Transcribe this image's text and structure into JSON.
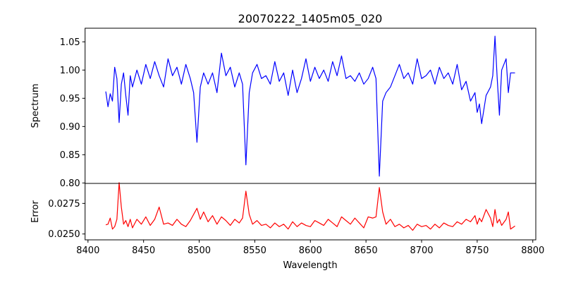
{
  "chart_data": {
    "type": "line",
    "title": "20070222_1405m05_020",
    "xlabel": "Wavelength",
    "xlim": [
      8397.4,
      8802.7
    ],
    "xticks": [
      8400,
      8450,
      8500,
      8550,
      8600,
      8650,
      8700,
      8750,
      8800
    ],
    "xtick_labels": [
      "8400",
      "8450",
      "8500",
      "8550",
      "8600",
      "8650",
      "8700",
      "8750",
      "8800"
    ],
    "panels": [
      {
        "name": "Spectrum",
        "ylabel": "Spectrum",
        "ylim": [
          0.7992,
          1.0741
        ],
        "color": "#0000ff",
        "yticks": [
          0.8,
          0.85,
          0.9,
          0.95,
          1.0,
          1.05
        ],
        "ytick_labels": [
          "0.80",
          "0.85",
          "0.90",
          "0.95",
          "1.00",
          "1.05"
        ]
      },
      {
        "name": "Error",
        "ylabel": "Error",
        "ylim": [
          0.02452,
          0.029134
        ],
        "color": "#ff0000",
        "yticks": [
          0.025,
          0.0275
        ],
        "ytick_labels": [
          "0.0250",
          "0.0275"
        ]
      }
    ],
    "columns": [
      "wavelength",
      "spectrum",
      "error"
    ],
    "data": [
      [
        8416,
        0.962,
        0.02575
      ],
      [
        8418,
        0.935,
        0.0258
      ],
      [
        8420,
        0.958,
        0.0263
      ],
      [
        8422,
        0.945,
        0.0254
      ],
      [
        8424,
        1.005,
        0.0256
      ],
      [
        8426,
        0.985,
        0.0262
      ],
      [
        8428,
        0.907,
        0.0292
      ],
      [
        8430,
        0.975,
        0.0272
      ],
      [
        8432,
        0.995,
        0.0258
      ],
      [
        8434,
        0.955,
        0.0261
      ],
      [
        8436,
        0.92,
        0.0256
      ],
      [
        8438,
        0.99,
        0.0262
      ],
      [
        8440,
        0.97,
        0.0255
      ],
      [
        8444,
        1.0,
        0.0262
      ],
      [
        8448,
        0.975,
        0.0258
      ],
      [
        8452,
        1.01,
        0.0264
      ],
      [
        8456,
        0.985,
        0.0257
      ],
      [
        8460,
        1.015,
        0.0262
      ],
      [
        8464,
        0.99,
        0.0272
      ],
      [
        8468,
        0.97,
        0.0258
      ],
      [
        8472,
        1.02,
        0.0259
      ],
      [
        8476,
        0.99,
        0.0257
      ],
      [
        8480,
        1.005,
        0.0262
      ],
      [
        8484,
        0.975,
        0.0258
      ],
      [
        8488,
        1.01,
        0.0256
      ],
      [
        8492,
        0.985,
        0.0261
      ],
      [
        8495,
        0.96,
        0.0266
      ],
      [
        8498,
        0.872,
        0.0271
      ],
      [
        8501,
        0.97,
        0.0262
      ],
      [
        8504,
        0.995,
        0.0268
      ],
      [
        8508,
        0.975,
        0.026
      ],
      [
        8512,
        0.995,
        0.0265
      ],
      [
        8516,
        0.96,
        0.0258
      ],
      [
        8520,
        1.03,
        0.0264
      ],
      [
        8524,
        0.99,
        0.0261
      ],
      [
        8528,
        1.005,
        0.0257
      ],
      [
        8532,
        0.97,
        0.0262
      ],
      [
        8536,
        0.995,
        0.0259
      ],
      [
        8539,
        0.975,
        0.0263
      ],
      [
        8542,
        0.832,
        0.0285
      ],
      [
        8545,
        0.96,
        0.0266
      ],
      [
        8548,
        0.995,
        0.0258
      ],
      [
        8552,
        1.01,
        0.0261
      ],
      [
        8556,
        0.985,
        0.0257
      ],
      [
        8560,
        0.99,
        0.0258
      ],
      [
        8564,
        0.975,
        0.0255
      ],
      [
        8568,
        1.015,
        0.0259
      ],
      [
        8572,
        0.98,
        0.0256
      ],
      [
        8576,
        0.995,
        0.0258
      ],
      [
        8580,
        0.955,
        0.0254
      ],
      [
        8584,
        1.0,
        0.026
      ],
      [
        8588,
        0.96,
        0.0256
      ],
      [
        8592,
        0.985,
        0.0259
      ],
      [
        8596,
        1.02,
        0.0257
      ],
      [
        8600,
        0.98,
        0.0256
      ],
      [
        8604,
        1.005,
        0.0261
      ],
      [
        8608,
        0.985,
        0.0259
      ],
      [
        8612,
        1.0,
        0.0257
      ],
      [
        8616,
        0.98,
        0.0262
      ],
      [
        8620,
        1.015,
        0.0259
      ],
      [
        8624,
        0.99,
        0.0256
      ],
      [
        8628,
        1.025,
        0.0264
      ],
      [
        8632,
        0.985,
        0.0261
      ],
      [
        8636,
        0.99,
        0.0258
      ],
      [
        8640,
        0.98,
        0.0263
      ],
      [
        8644,
        0.995,
        0.0259
      ],
      [
        8648,
        0.975,
        0.0255
      ],
      [
        8652,
        0.985,
        0.0264
      ],
      [
        8656,
        1.005,
        0.0263
      ],
      [
        8659,
        0.985,
        0.0264
      ],
      [
        8662,
        0.812,
        0.0288
      ],
      [
        8665,
        0.945,
        0.0268
      ],
      [
        8668,
        0.96,
        0.0258
      ],
      [
        8672,
        0.97,
        0.0262
      ],
      [
        8676,
        0.99,
        0.0256
      ],
      [
        8680,
        1.01,
        0.0258
      ],
      [
        8684,
        0.985,
        0.0255
      ],
      [
        8688,
        0.995,
        0.0257
      ],
      [
        8692,
        0.975,
        0.0253
      ],
      [
        8696,
        1.02,
        0.0258
      ],
      [
        8700,
        0.985,
        0.0256
      ],
      [
        8704,
        0.99,
        0.0257
      ],
      [
        8708,
        1.0,
        0.0254
      ],
      [
        8712,
        0.975,
        0.0258
      ],
      [
        8716,
        1.005,
        0.0255
      ],
      [
        8720,
        0.985,
        0.0259
      ],
      [
        8724,
        0.995,
        0.0257
      ],
      [
        8728,
        0.975,
        0.0256
      ],
      [
        8732,
        1.01,
        0.026
      ],
      [
        8736,
        0.965,
        0.0258
      ],
      [
        8740,
        0.98,
        0.0262
      ],
      [
        8744,
        0.945,
        0.026
      ],
      [
        8748,
        0.96,
        0.0265
      ],
      [
        8750,
        0.925,
        0.0258
      ],
      [
        8752,
        0.94,
        0.0263
      ],
      [
        8754,
        0.905,
        0.026
      ],
      [
        8758,
        0.955,
        0.027
      ],
      [
        8762,
        0.97,
        0.0263
      ],
      [
        8764,
        0.99,
        0.0256
      ],
      [
        8766,
        1.06,
        0.027
      ],
      [
        8768,
        0.985,
        0.0259
      ],
      [
        8770,
        0.92,
        0.0262
      ],
      [
        8772,
        1.0,
        0.0257
      ],
      [
        8776,
        1.02,
        0.0262
      ],
      [
        8778,
        0.96,
        0.0268
      ],
      [
        8780,
        0.995,
        0.0254
      ],
      [
        8784,
        0.995,
        0.02565
      ]
    ]
  }
}
